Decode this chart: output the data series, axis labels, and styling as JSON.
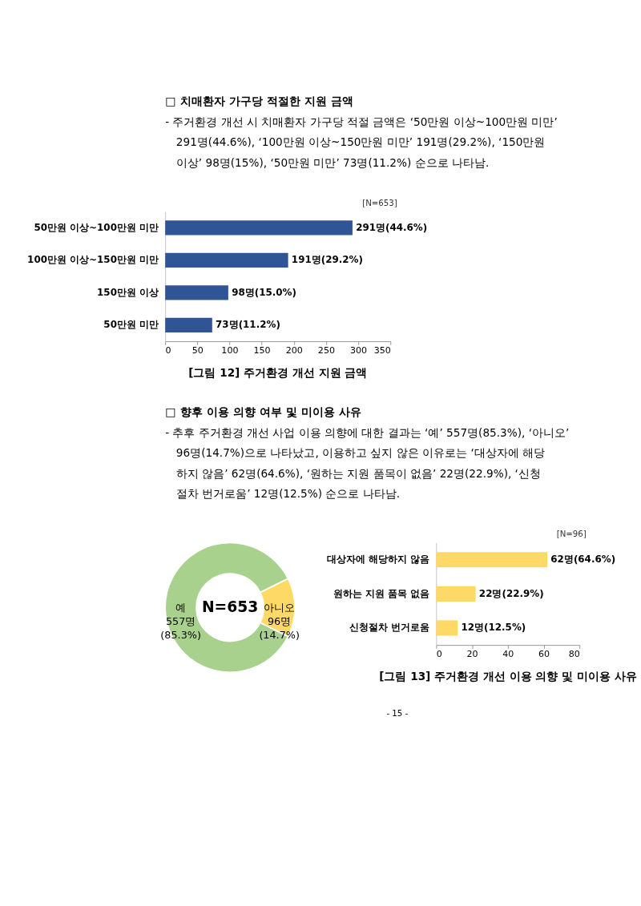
{
  "chart_data": [
    {
      "type": "other",
      "title": "□ 치매환자 가구당 적절한 지원 금액",
      "subtitle": [
        "- 주거환경 개선 시 치매환자 가구당 적절 금액은 ‘50만원 이상~100만원 미만’",
        "291명(44.6%), ‘100만원 이상~150만원 미만’ 191명(29.2%), ‘150만원",
        "이상’ 98명(15%), ‘50만원 미만’ 73명(11.2%) 순으로 나타남."
      ]
    },
    {
      "type": "bar",
      "orientation": "horizontal",
      "categories": [
        "50만원 이상~100만원 미만",
        "100만원 이상~150만원 미만",
        "150만원 이상",
        "50만원 미만"
      ],
      "values": [
        291,
        191,
        98,
        73
      ],
      "color": "#2f5597",
      "value_labels": [
        "291명(44.6%)",
        "191명(29.2%)",
        "98명(15.0%)",
        "73명(11.2%)"
      ],
      "xlim": [
        0,
        350
      ],
      "xticks": [
        0,
        50,
        100,
        150,
        200,
        250,
        300,
        350
      ],
      "grid": false,
      "annotations": [
        "[N=653]",
        "[그림 12] 주거환경 개선 지원 금액"
      ]
    },
    {
      "type": "other",
      "title": "□ 향후 이용 의향 여부 및 미이용 사유",
      "subtitle": [
        "- 추후 주거환경 개선 사업 이용 의향에 대한 결과는 ‘예’ 557명(85.3%), ‘아니오’",
        "96명(14.7%)으로 나타났고, 이용하고 싶지 않은 이유로는 ‘대상자에 해당",
        "하지 않음’ 62명(64.6%), ‘원하는 지원 품목이 없음’ 22명(22.9%), ‘신청",
        "절차 번거로움’ 12명(12.5%) 순으로 나타남."
      ]
    },
    {
      "type": "donut",
      "categories": [
        "예",
        "아니오"
      ],
      "values": [
        557,
        96
      ],
      "colors": [
        "#a9d18e",
        "#ffd966"
      ],
      "value_labels": [
        "557명\n(85.3%)",
        "96명\n(14.7%)"
      ],
      "annotations": [
        "N=653"
      ]
    },
    {
      "type": "bar",
      "orientation": "horizontal",
      "categories": [
        "대상자에 해당하지 않음",
        "원하는 지원 품목 없음",
        "신청절차 번거로움"
      ],
      "values": [
        62,
        22,
        12
      ],
      "color": "#ffd966",
      "value_labels": [
        "62명(64.6%)",
        "22명(22.9%)",
        "12명(12.5%)"
      ],
      "xlim": [
        0,
        80
      ],
      "xticks": [
        0,
        20,
        40,
        60,
        80
      ],
      "grid": false,
      "annotations": [
        "[N=96]",
        "[그림 13] 주거환경 개선 이용 의향 및 미이용 사유",
        "- 15 -"
      ]
    }
  ]
}
